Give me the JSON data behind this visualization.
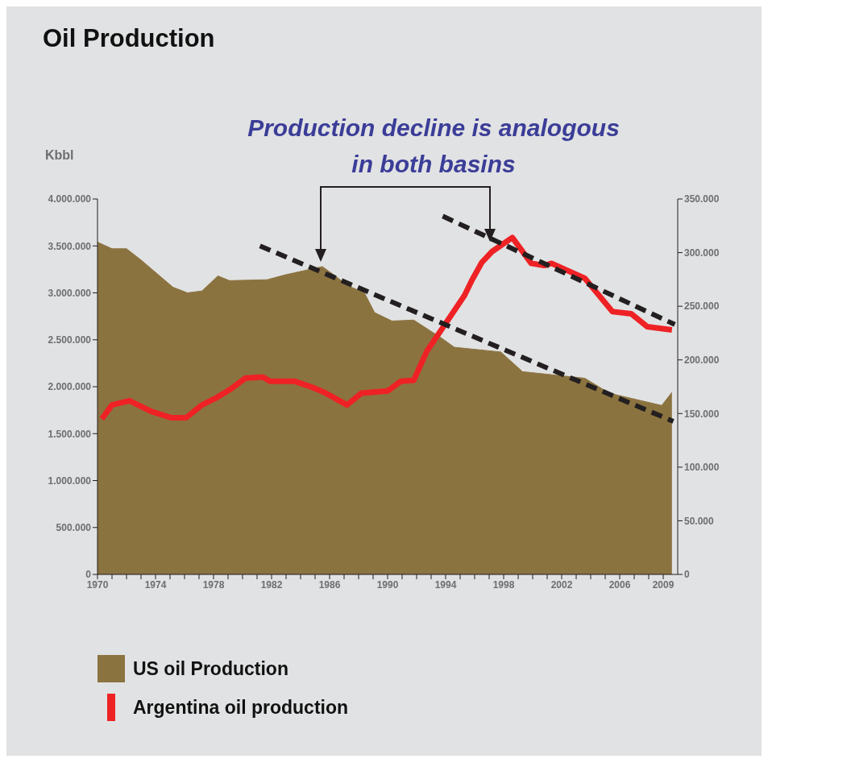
{
  "chart_data": {
    "type": "area",
    "title": "Oil Production",
    "ylabel": "Kbbl",
    "annotations": [
      "Production decline is analogous in both basins"
    ],
    "xlim": [
      1970,
      2010
    ],
    "xticks": [
      1970,
      {
        "value": 1971,
        "label": null
      },
      {
        "value": 1972,
        "label": null
      },
      {
        "value": 1973,
        "label": null
      },
      1974,
      {
        "value": 1975,
        "label": null
      },
      {
        "value": 1976,
        "label": null
      },
      {
        "value": 1977,
        "label": null
      },
      1978,
      {
        "value": 1979,
        "label": null
      },
      {
        "value": 1980,
        "label": null
      },
      {
        "value": 1981,
        "label": null
      },
      1982,
      {
        "value": 1983,
        "label": null
      },
      {
        "value": 1984,
        "label": null
      },
      {
        "value": 1985,
        "label": null
      },
      1986,
      {
        "value": 1987,
        "label": null
      },
      {
        "value": 1988,
        "label": null
      },
      {
        "value": 1989,
        "label": null
      },
      1990,
      {
        "value": 1991,
        "label": null
      },
      {
        "value": 1992,
        "label": null
      },
      {
        "value": 1993,
        "label": null
      },
      1994,
      {
        "value": 1995,
        "label": null
      },
      {
        "value": 1996,
        "label": null
      },
      {
        "value": 1997,
        "label": null
      },
      1998,
      {
        "value": 1999,
        "label": null
      },
      {
        "value": 2000,
        "label": null
      },
      {
        "value": 2001,
        "label": null
      },
      2002,
      {
        "value": 2003,
        "label": null
      },
      {
        "value": 2004,
        "label": null
      },
      {
        "value": 2005,
        "label": null
      },
      2006,
      {
        "value": 2007,
        "label": null
      },
      {
        "value": 2008,
        "label": null
      },
      2009
    ],
    "ylim": [
      0,
      4000000
    ],
    "yticks": [
      0,
      {
        "value": 500000,
        "label": "500.000"
      },
      {
        "value": 1000000,
        "label": "1.000.000"
      },
      {
        "value": 1500000,
        "label": "1.500.000"
      },
      {
        "value": 2000000,
        "label": "2.000.000"
      },
      {
        "value": 2500000,
        "label": "2.500.000"
      },
      {
        "value": 3000000,
        "label": "3.000.000"
      },
      {
        "value": 3500000,
        "label": "3.500.000"
      },
      {
        "value": 4000000,
        "label": "4.000.000"
      }
    ],
    "y2lim": [
      0,
      350000
    ],
    "y2ticks": [
      0,
      {
        "value": 50000,
        "label": "50.000"
      },
      {
        "value": 100000,
        "label": "100.000"
      },
      {
        "value": 150000,
        "label": "150.000"
      },
      {
        "value": 200000,
        "label": "200.000"
      },
      {
        "value": 250000,
        "label": "250.000"
      },
      {
        "value": 300000,
        "label": "300.000"
      },
      {
        "value": 350000,
        "label": "350.000"
      }
    ],
    "legend": "bottom",
    "marker": "none",
    "series": [
      {
        "name": "US oil Production",
        "color": "#8b7340",
        "x": [
          1970,
          1971,
          1972,
          1973,
          1975.2,
          1976.2,
          1977.2,
          1978.3,
          1979.1,
          1981.7,
          1982.9,
          1985.5,
          1986.4,
          1987.2,
          1988.4,
          1989.1,
          1990.3,
          1991.8,
          1993.7,
          1994.6,
          1997.8,
          1999.3,
          2003.6,
          2005.3,
          2008.9,
          2009.6
        ],
        "values": [
          3540000,
          3470000,
          3470000,
          3350000,
          3060000,
          3000000,
          3020000,
          3180000,
          3130000,
          3140000,
          3190000,
          3280000,
          3180000,
          3080000,
          3000000,
          2790000,
          2700000,
          2710000,
          2520000,
          2420000,
          2370000,
          2160000,
          2090000,
          1930000,
          1800000,
          1940000
        ]
      },
      {
        "name": "Argentina oil production",
        "type": "line",
        "axis": "y2",
        "color": "#ee2225",
        "x": [
          1970.3,
          1971,
          1972.2,
          1973.7,
          1975.1,
          1976.1,
          1977.2,
          1978.1,
          1979.2,
          1980.2,
          1981.4,
          1981.9,
          1983.6,
          1984.7,
          1985.6,
          1987.2,
          1988.2,
          1990,
          1990.9,
          1991.8,
          1992.7,
          1993.4,
          1995.3,
          1995.8,
          1996.5,
          1997.2,
          1998.6,
          1999.9,
          2000.8,
          2001.3,
          2003.6,
          2005.5,
          2006.8,
          2007.9,
          2009.6
        ],
        "values": [
          145000,
          158000,
          162000,
          152000,
          146000,
          146000,
          158000,
          164000,
          173000,
          183000,
          184000,
          180000,
          180000,
          175000,
          170000,
          158000,
          169000,
          171000,
          180000,
          181000,
          208000,
          222000,
          260000,
          274000,
          291000,
          301000,
          314000,
          290000,
          288000,
          290000,
          276000,
          245000,
          243000,
          231000,
          228000
        ]
      },
      {
        "type": "line",
        "line_style": "dashed",
        "color": "#231f20",
        "x": [
          1981.2,
          2009.7
        ],
        "values": [
          3500000,
          1630000
        ]
      },
      {
        "type": "line",
        "line_style": "dashed",
        "axis": "y2",
        "color": "#231f20",
        "x": [
          1993.8,
          2009.8
        ],
        "values": [
          334000,
          233000
        ]
      }
    ]
  }
}
